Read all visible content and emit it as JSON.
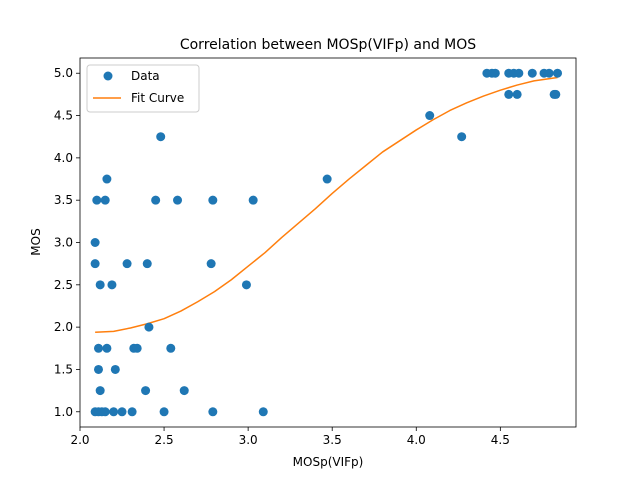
{
  "chart_data": {
    "type": "scatter",
    "title": "Correlation between MOSp(VIFp) and MOS",
    "xlabel": "MOSp(VIFp)",
    "ylabel": "MOS",
    "xlim": [
      2.0,
      4.95
    ],
    "ylim": [
      0.82,
      5.18
    ],
    "xticks": [
      2.0,
      2.5,
      3.0,
      3.5,
      4.0,
      4.5
    ],
    "xtick_labels": [
      "2.0",
      "2.5",
      "3.0",
      "3.5",
      "4.0",
      "4.5"
    ],
    "yticks": [
      1.0,
      1.5,
      2.0,
      2.5,
      3.0,
      3.5,
      4.0,
      4.5,
      5.0
    ],
    "ytick_labels": [
      "1.0",
      "1.5",
      "2.0",
      "2.5",
      "3.0",
      "3.5",
      "4.0",
      "4.5",
      "5.0"
    ],
    "grid": false,
    "legend": {
      "placement": "top-left",
      "entries": [
        "Data",
        "Fit Curve"
      ]
    },
    "series": [
      {
        "name": "Data",
        "kind": "scatter",
        "color": "#1f77b4",
        "points": [
          [
            2.09,
            1.0
          ],
          [
            2.11,
            1.0
          ],
          [
            2.13,
            1.0
          ],
          [
            2.15,
            1.0
          ],
          [
            2.2,
            1.0
          ],
          [
            2.25,
            1.0
          ],
          [
            2.31,
            1.0
          ],
          [
            2.5,
            1.0
          ],
          [
            2.79,
            1.0
          ],
          [
            3.09,
            1.0
          ],
          [
            2.12,
            1.25
          ],
          [
            2.39,
            1.25
          ],
          [
            2.62,
            1.25
          ],
          [
            2.11,
            1.5
          ],
          [
            2.21,
            1.5
          ],
          [
            2.11,
            1.75
          ],
          [
            2.16,
            1.75
          ],
          [
            2.32,
            1.75
          ],
          [
            2.34,
            1.75
          ],
          [
            2.54,
            1.75
          ],
          [
            2.41,
            2.0
          ],
          [
            2.12,
            2.5
          ],
          [
            2.19,
            2.5
          ],
          [
            2.99,
            2.5
          ],
          [
            2.09,
            2.75
          ],
          [
            2.28,
            2.75
          ],
          [
            2.4,
            2.75
          ],
          [
            2.78,
            2.75
          ],
          [
            2.09,
            3.0
          ],
          [
            2.1,
            3.5
          ],
          [
            2.15,
            3.5
          ],
          [
            2.45,
            3.5
          ],
          [
            2.58,
            3.5
          ],
          [
            2.79,
            3.5
          ],
          [
            3.03,
            3.5
          ],
          [
            2.16,
            3.75
          ],
          [
            3.47,
            3.75
          ],
          [
            2.48,
            4.25
          ],
          [
            4.27,
            4.25
          ],
          [
            4.08,
            4.5
          ],
          [
            4.55,
            4.75
          ],
          [
            4.6,
            4.75
          ],
          [
            4.82,
            4.75
          ],
          [
            4.83,
            4.75
          ],
          [
            4.42,
            5.0
          ],
          [
            4.45,
            5.0
          ],
          [
            4.47,
            5.0
          ],
          [
            4.55,
            5.0
          ],
          [
            4.58,
            5.0
          ],
          [
            4.61,
            5.0
          ],
          [
            4.69,
            5.0
          ],
          [
            4.76,
            5.0
          ],
          [
            4.79,
            5.0
          ],
          [
            4.84,
            5.0
          ]
        ]
      },
      {
        "name": "Fit Curve",
        "kind": "line",
        "color": "#ff7f0e",
        "points": [
          [
            2.09,
            1.94
          ],
          [
            2.2,
            1.95
          ],
          [
            2.3,
            1.99
          ],
          [
            2.4,
            2.04
          ],
          [
            2.5,
            2.1
          ],
          [
            2.6,
            2.19
          ],
          [
            2.7,
            2.3
          ],
          [
            2.8,
            2.42
          ],
          [
            2.9,
            2.56
          ],
          [
            3.0,
            2.72
          ],
          [
            3.1,
            2.88
          ],
          [
            3.2,
            3.06
          ],
          [
            3.3,
            3.23
          ],
          [
            3.4,
            3.4
          ],
          [
            3.5,
            3.58
          ],
          [
            3.6,
            3.75
          ],
          [
            3.7,
            3.91
          ],
          [
            3.8,
            4.07
          ],
          [
            3.9,
            4.2
          ],
          [
            4.0,
            4.33
          ],
          [
            4.1,
            4.45
          ],
          [
            4.2,
            4.56
          ],
          [
            4.3,
            4.65
          ],
          [
            4.4,
            4.73
          ],
          [
            4.5,
            4.8
          ],
          [
            4.6,
            4.86
          ],
          [
            4.7,
            4.91
          ],
          [
            4.84,
            4.95
          ]
        ]
      }
    ]
  }
}
